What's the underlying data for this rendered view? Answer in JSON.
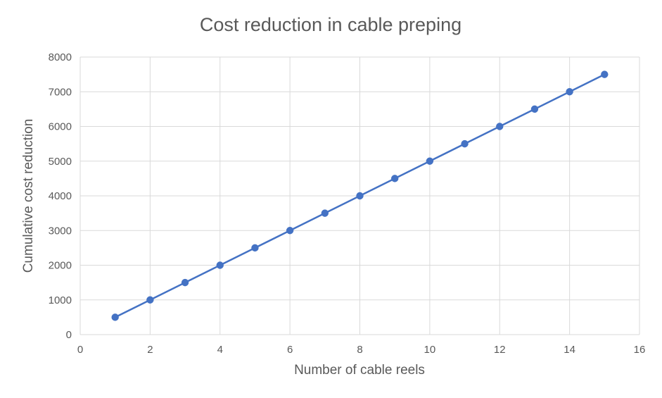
{
  "chart_data": {
    "type": "scatter",
    "title": "Cost reduction in cable preping",
    "xlabel": "Number of cable reels",
    "ylabel": "Cumulative cost reduction",
    "xlim": [
      0,
      16
    ],
    "ylim": [
      0,
      8000
    ],
    "x_ticks": [
      0,
      2,
      4,
      6,
      8,
      10,
      12,
      14,
      16
    ],
    "y_ticks": [
      0,
      1000,
      2000,
      3000,
      4000,
      5000,
      6000,
      7000,
      8000
    ],
    "grid": true,
    "legend": "none",
    "series": [
      {
        "color": "#4472c4",
        "marker": "circle",
        "line": true,
        "x": [
          1,
          2,
          3,
          4,
          5,
          6,
          7,
          8,
          9,
          10,
          11,
          12,
          13,
          14,
          15
        ],
        "y": [
          500,
          1000,
          1500,
          2000,
          2500,
          3000,
          3500,
          4000,
          4500,
          5000,
          5500,
          6000,
          6500,
          7000,
          7500
        ]
      }
    ]
  }
}
